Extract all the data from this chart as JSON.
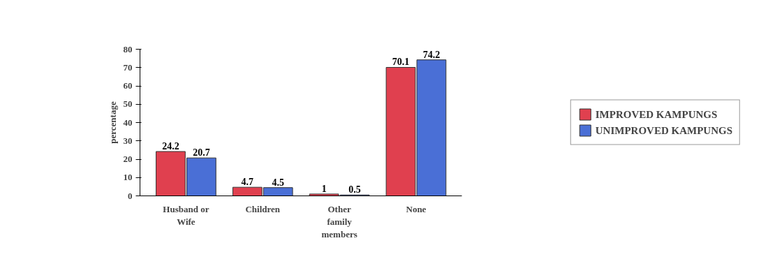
{
  "chart_data": {
    "type": "bar",
    "ylabel": "percentage",
    "categories": [
      "Husband or Wife",
      "Children",
      "Other family members",
      "None"
    ],
    "series": [
      {
        "name": "IMPROVED KAMPUNGS",
        "color": "#e0404f",
        "values": [
          24.2,
          4.7,
          1,
          70.1
        ]
      },
      {
        "name": "UNIMPROVED KAMPUNGS",
        "color": "#4a6fd6",
        "values": [
          20.7,
          4.5,
          0.5,
          74.2
        ]
      }
    ],
    "ylim": [
      0,
      80
    ],
    "yticks": [
      0,
      10,
      20,
      30,
      40,
      50,
      60,
      70,
      80
    ],
    "data_labels": true,
    "grid": false,
    "legend": "right"
  }
}
